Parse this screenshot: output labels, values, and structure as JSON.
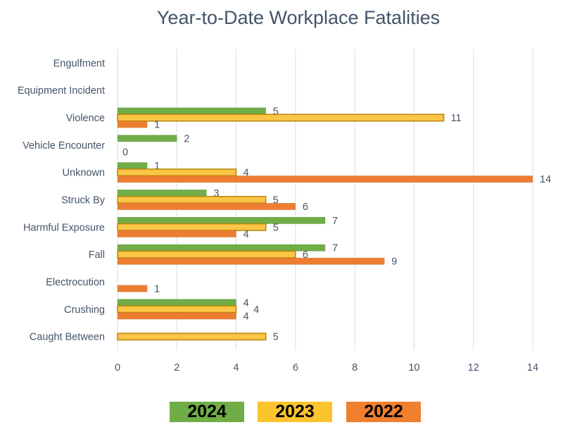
{
  "chart_data": {
    "type": "bar",
    "orientation": "horizontal",
    "title": "Year-to-Date Workplace Fatalities",
    "xlabel": "",
    "ylabel": "",
    "xlim": [
      0,
      14
    ],
    "xticks": [
      0,
      2,
      4,
      6,
      8,
      10,
      12,
      14
    ],
    "grid": true,
    "legend_position": "bottom",
    "categories": [
      "Engulfment",
      "Equipment Incident",
      "Violence",
      "Vehicle Encounter",
      "Unknown",
      "Struck By",
      "Harmful Exposure",
      "Fall",
      "Electrocution",
      "Crushing",
      "Caught Between"
    ],
    "series": [
      {
        "name": "2024",
        "color": "#70ad47",
        "values": [
          null,
          null,
          5,
          2,
          1,
          3,
          7,
          7,
          null,
          4,
          null
        ]
      },
      {
        "name": "2023",
        "color": "#fbc545",
        "values": [
          null,
          null,
          11,
          null,
          4,
          5,
          5,
          6,
          null,
          4,
          5
        ]
      },
      {
        "name": "2022",
        "color": "#ed7d31",
        "values": [
          null,
          null,
          1,
          0,
          14,
          6,
          4,
          9,
          1,
          4,
          null
        ]
      }
    ]
  }
}
